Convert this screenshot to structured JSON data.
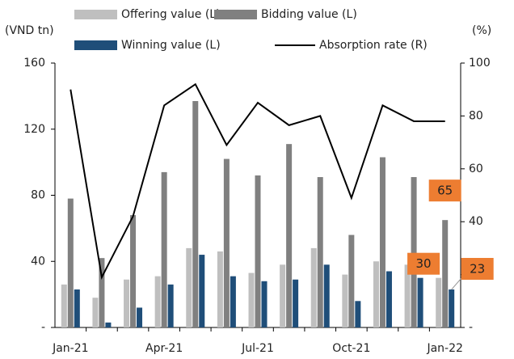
{
  "chart_data": {
    "type": "bar_line",
    "y_label": "(VND tn)",
    "y2_label": "(%)",
    "categories": [
      "Jan-21",
      null,
      null,
      "Apr-21",
      null,
      null,
      "Jul-21",
      null,
      null,
      "Oct-21",
      null,
      null,
      "Jan-22"
    ],
    "series": [
      {
        "name": "Offering value (L)",
        "color": "#bfbfbf",
        "type": "bar",
        "values": [
          26,
          18,
          29,
          31,
          48,
          46,
          33,
          38,
          48,
          32,
          40,
          38,
          30
        ]
      },
      {
        "name": "Bidding value (L)",
        "color": "#808080",
        "type": "bar",
        "values": [
          78,
          42,
          68,
          94,
          137,
          102,
          92,
          111,
          91,
          56,
          103,
          91,
          65
        ]
      },
      {
        "name": "Winning value (L)",
        "color": "#1f4e79",
        "type": "bar",
        "values": [
          23,
          3,
          12,
          26,
          44,
          31,
          28,
          29,
          38,
          16,
          34,
          30,
          23
        ]
      },
      {
        "name": "Absorption rate (R)",
        "color": "#000000",
        "type": "line",
        "axis": "y2",
        "values": [
          90,
          19,
          42,
          84,
          92,
          69,
          85,
          76.5,
          80,
          49,
          84,
          78,
          78
        ]
      }
    ],
    "ylim": [
      0,
      160
    ],
    "yticks": [
      {
        "value": 0,
        "label": "-"
      },
      40,
      80,
      120,
      160
    ],
    "y2lim": [
      0,
      100
    ],
    "y2ticks": [
      {
        "value": 0,
        "label": "-"
      },
      20,
      40,
      60,
      80,
      100
    ],
    "label_color": "#ed7d31"
  }
}
